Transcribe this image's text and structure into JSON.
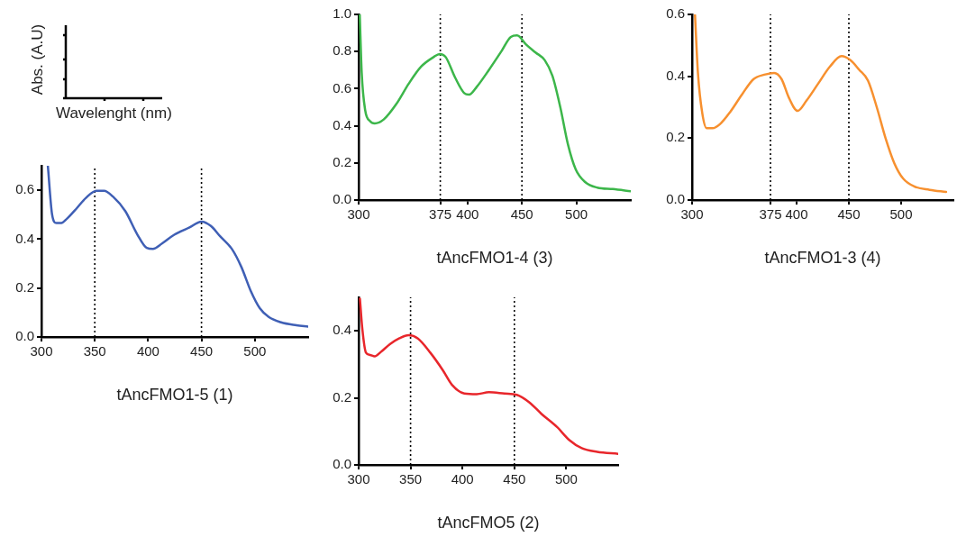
{
  "chart_data": [
    {
      "type": "other",
      "xlabel": "Wavelenght (nm)",
      "ylabel": "Abs. (A.U)"
    },
    {
      "type": "line",
      "xlabel": "tAncFMO1-4 (3)",
      "xlim": [
        300,
        550
      ],
      "xticks": [
        300,
        375,
        400,
        450,
        500
      ],
      "ylim": [
        0,
        1
      ],
      "yticks": [
        {
          "value": 0,
          "label": "0.0"
        },
        {
          "value": 0.2,
          "label": "0.2"
        },
        {
          "value": 0.4,
          "label": "0.4"
        },
        {
          "value": 0.6,
          "label": "0.6"
        },
        {
          "value": 0.8,
          "label": "0.8"
        },
        {
          "value": 1,
          "label": "1.0"
        }
      ],
      "x": [
        301,
        302.8,
        306,
        310.5,
        314.8,
        323,
        334.7,
        346,
        357.4,
        368.8,
        374.4,
        380,
        388.6,
        397,
        401.4,
        408.5,
        419.9,
        431.3,
        439.8,
        445.5,
        454,
        462.5,
        471,
        478,
        485.2,
        492.3,
        499.4,
        508,
        519.3,
        533.5,
        550
      ],
      "series": [
        {
          "color": "#3cb64a",
          "values": [
            1.0,
            0.686,
            0.484,
            0.425,
            0.413,
            0.434,
            0.518,
            0.627,
            0.719,
            0.77,
            0.787,
            0.77,
            0.66,
            0.576,
            0.568,
            0.61,
            0.703,
            0.803,
            0.879,
            0.887,
            0.837,
            0.795,
            0.753,
            0.669,
            0.501,
            0.299,
            0.165,
            0.097,
            0.067,
            0.059,
            0.047
          ]
        }
      ],
      "ref_lines": [
        {
          "axis": "x",
          "value": 375,
          "color": "#000000",
          "line_style": "dotted"
        },
        {
          "axis": "x",
          "value": 450,
          "color": "#000000",
          "line_style": "dotted"
        }
      ]
    },
    {
      "type": "line",
      "xlabel": "tAncFMO1-3 (4)",
      "xlim": [
        300,
        550
      ],
      "xticks": [
        300,
        375,
        400,
        450,
        500
      ],
      "ylim": [
        0,
        0.6
      ],
      "yticks": [
        {
          "value": 0,
          "label": "0.0"
        },
        {
          "value": 0.2,
          "label": "0.2"
        },
        {
          "value": 0.4,
          "label": "0.4"
        },
        {
          "value": 0.6,
          "label": "0.6"
        }
      ],
      "x": [
        302.8,
        305.6,
        309.8,
        314,
        319.6,
        326.6,
        336.5,
        347.7,
        358.9,
        370.1,
        378.5,
        385.6,
        392.6,
        401,
        409.4,
        420.6,
        431.8,
        443,
        451.5,
        459.9,
        468.3,
        476.7,
        485.1,
        493.5,
        502,
        513.2,
        527.2,
        543
      ],
      "series": [
        {
          "color": "#f7902f",
          "values": [
            0.598,
            0.411,
            0.28,
            0.232,
            0.232,
            0.245,
            0.285,
            0.341,
            0.391,
            0.406,
            0.411,
            0.391,
            0.331,
            0.288,
            0.321,
            0.376,
            0.431,
            0.465,
            0.452,
            0.421,
            0.386,
            0.3,
            0.2,
            0.119,
            0.069,
            0.043,
            0.033,
            0.026
          ]
        }
      ],
      "ref_lines": [
        {
          "axis": "x",
          "value": 375,
          "color": "#000000",
          "line_style": "dotted"
        },
        {
          "axis": "x",
          "value": 450,
          "color": "#000000",
          "line_style": "dotted"
        }
      ]
    },
    {
      "type": "line",
      "xlabel": "tAncFMO1-5 (1)",
      "xlim": [
        300,
        550
      ],
      "xticks": [
        300,
        350,
        400,
        450,
        500
      ],
      "ylim": [
        0,
        0.7
      ],
      "yticks": [
        {
          "value": 0,
          "label": "0.0"
        },
        {
          "value": 0.2,
          "label": "0.2"
        },
        {
          "value": 0.4,
          "label": "0.4"
        },
        {
          "value": 0.6,
          "label": "0.6"
        }
      ],
      "x": [
        306,
        310,
        314,
        318.6,
        324,
        333,
        341.5,
        351.5,
        358.7,
        367,
        378.7,
        390,
        398.7,
        404.4,
        413,
        424.5,
        438.8,
        450,
        458.8,
        467.4,
        478.8,
        487.4,
        496,
        504.6,
        513,
        524.6,
        539,
        550
      ],
      "series": [
        {
          "color": "#3f5fb5",
          "values": [
            0.7,
            0.5,
            0.466,
            0.466,
            0.484,
            0.526,
            0.568,
            0.598,
            0.598,
            0.574,
            0.514,
            0.418,
            0.364,
            0.36,
            0.382,
            0.418,
            0.448,
            0.472,
            0.454,
            0.412,
            0.358,
            0.286,
            0.19,
            0.118,
            0.082,
            0.06,
            0.048,
            0.042
          ]
        }
      ],
      "ref_lines": [
        {
          "axis": "x",
          "value": 350,
          "color": "#000000",
          "line_style": "dotted"
        },
        {
          "axis": "x",
          "value": 450,
          "color": "#000000",
          "line_style": "dotted"
        }
      ]
    },
    {
      "type": "line",
      "xlabel": "tAncFMO5 (2)",
      "xlim": [
        300,
        550
      ],
      "xticks": [
        300,
        350,
        400,
        450,
        500
      ],
      "ylim": [
        0,
        0.5
      ],
      "yticks": [
        {
          "value": 0,
          "label": "0.0"
        },
        {
          "value": 0.2,
          "label": "0.2"
        },
        {
          "value": 0.4,
          "label": "0.4"
        }
      ],
      "x": [
        301.2,
        303.6,
        307,
        311,
        315.5,
        321.4,
        330.4,
        339.3,
        348.2,
        357.1,
        369,
        381,
        389.9,
        401.8,
        413.7,
        425.6,
        440.5,
        452.4,
        464.3,
        476.2,
        491.1,
        503,
        514.9,
        529.8,
        550
      ],
      "series": [
        {
          "color": "#e8262b",
          "values": [
            0.496,
            0.404,
            0.335,
            0.328,
            0.324,
            0.337,
            0.361,
            0.378,
            0.387,
            0.377,
            0.335,
            0.283,
            0.239,
            0.213,
            0.211,
            0.217,
            0.213,
            0.209,
            0.187,
            0.152,
            0.113,
            0.074,
            0.05,
            0.039,
            0.033
          ]
        }
      ],
      "ref_lines": [
        {
          "axis": "x",
          "value": 350,
          "color": "#000000",
          "line_style": "dotted"
        },
        {
          "axis": "x",
          "value": 450,
          "color": "#000000",
          "line_style": "dotted"
        }
      ]
    }
  ]
}
